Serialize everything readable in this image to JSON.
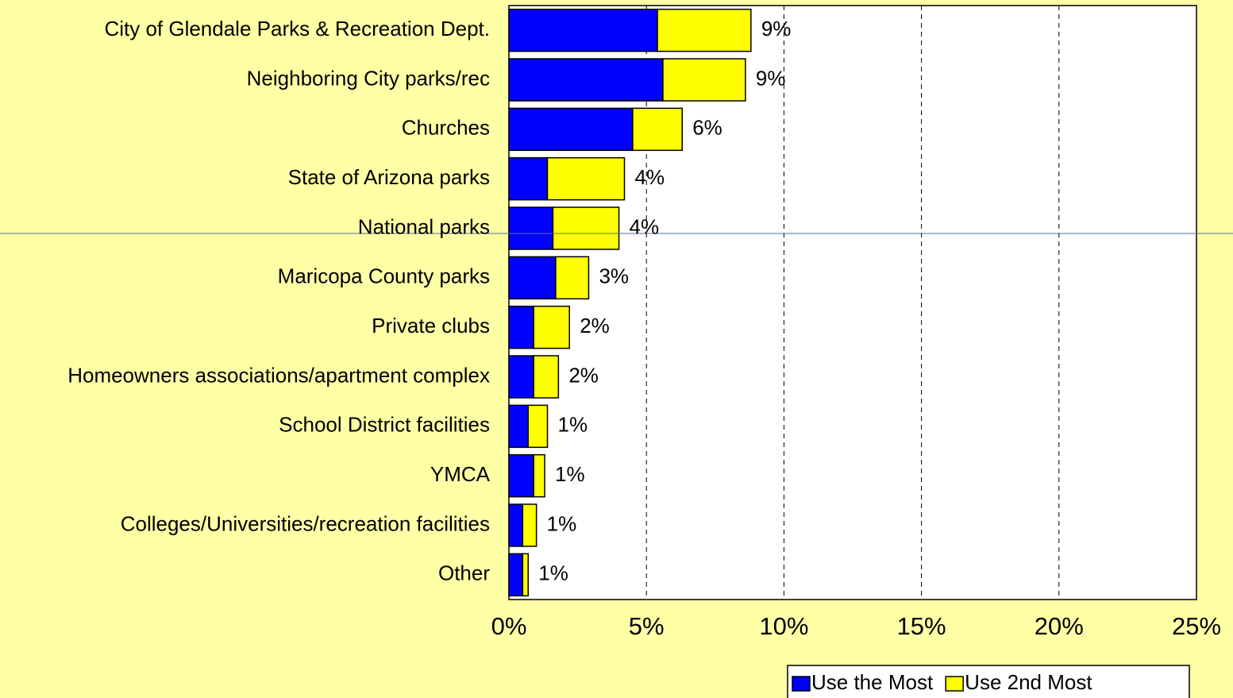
{
  "chart_data": {
    "type": "stacked-bar-horizontal",
    "categories": [
      "City of Glendale Parks & Recreation Dept.",
      "Neighboring City parks/rec",
      "Churches",
      "State of Arizona parks",
      "National parks",
      "Maricopa County parks",
      "Private clubs",
      "Homeowners associations/apartment complex",
      "School District facilities",
      "YMCA",
      "Colleges/Universities/recreation facilities",
      "Other"
    ],
    "series": [
      {
        "name": "Use the Most",
        "color": "#0000ff",
        "values": [
          5.4,
          5.6,
          4.5,
          1.4,
          1.6,
          1.7,
          0.9,
          0.9,
          0.7,
          0.9,
          0.5,
          0.5
        ]
      },
      {
        "name": "Use 2nd Most",
        "color": "#ffff00",
        "values": [
          3.4,
          3.0,
          1.8,
          2.8,
          2.4,
          1.2,
          1.3,
          0.9,
          0.7,
          0.4,
          0.5,
          0.2
        ]
      }
    ],
    "totals": [
      8.8,
      8.6,
      6.3,
      4.2,
      4.0,
      2.9,
      2.2,
      1.8,
      1.4,
      1.3,
      1.0,
      0.7
    ],
    "total_labels": [
      "9%",
      "9%",
      "6%",
      "4%",
      "4%",
      "3%",
      "2%",
      "2%",
      "1%",
      "1%",
      "1%",
      "1%"
    ],
    "xlim": [
      0,
      25
    ],
    "xticks": [
      {
        "value": 0,
        "label": "0%"
      },
      {
        "value": 5,
        "label": "5%"
      },
      {
        "value": 10,
        "label": "10%"
      },
      {
        "value": 15,
        "label": "15%"
      },
      {
        "value": 20,
        "label": "20%"
      },
      {
        "value": 25,
        "label": "25%"
      }
    ],
    "grid": true,
    "legend": "bottom-right"
  }
}
